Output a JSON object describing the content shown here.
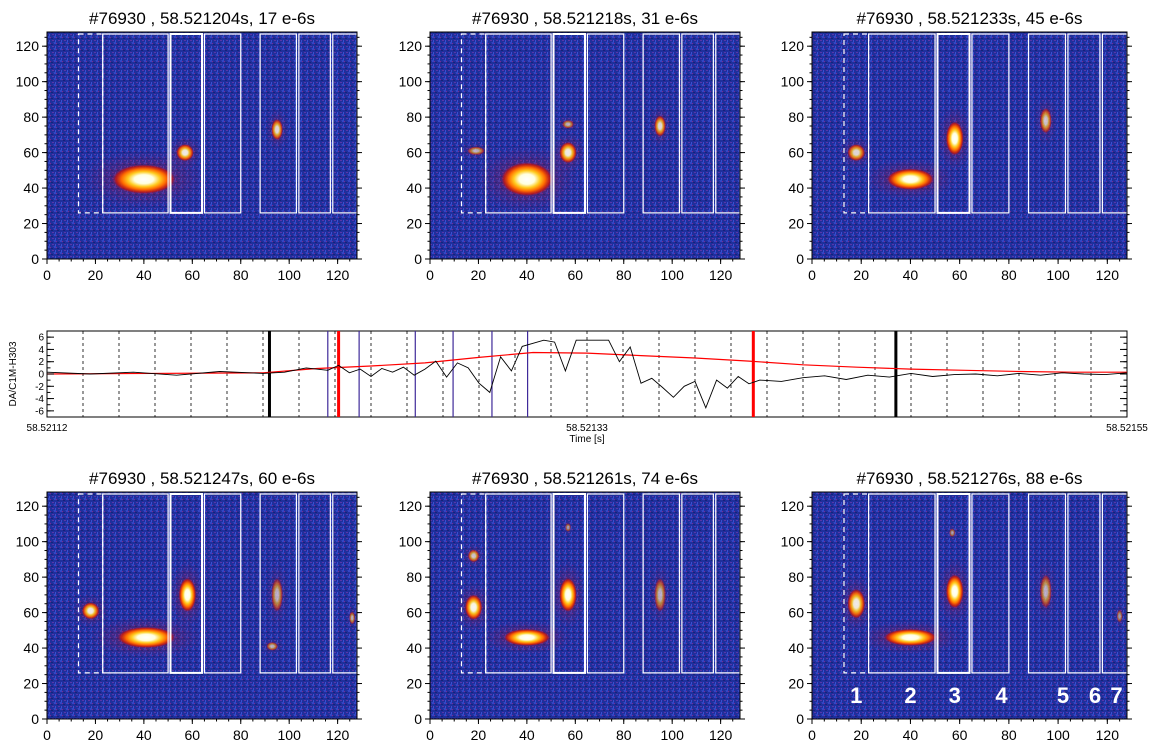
{
  "colors": {
    "background": "#1e2f9a",
    "noise": "#2b3fb8",
    "hot_low": "#c8140c",
    "hot_mid": "#ff8a00",
    "hot_high": "#ffffff",
    "box": "#ffffff",
    "trace": "#000000",
    "envelope": "#ff0000",
    "marker_black": "#000000",
    "marker_red": "#ff0000",
    "marker_purple": "#3f2a9a"
  },
  "chart_data": [
    {
      "type": "heatmap",
      "title": "#76930 , 58.521204s,   17 e-6s",
      "xlim": [
        0,
        128
      ],
      "ylim": [
        0,
        128
      ],
      "xticks": [
        "0",
        "20",
        "40",
        "60",
        "80",
        "100",
        "120"
      ],
      "yticks": [
        "0",
        "20",
        "40",
        "60",
        "80",
        "100",
        "120"
      ],
      "spots": [
        {
          "x": 40,
          "y": 45,
          "rx": 11,
          "ry": 7,
          "level": 1.0
        },
        {
          "x": 57,
          "y": 60,
          "rx": 3,
          "ry": 4,
          "level": 0.8
        },
        {
          "x": 95,
          "y": 73,
          "rx": 2,
          "ry": 5,
          "level": 0.7
        }
      ]
    },
    {
      "type": "heatmap",
      "title": "#76930 , 58.521218s,   31 e-6s",
      "xlim": [
        0,
        128
      ],
      "ylim": [
        0,
        128
      ],
      "xticks": [
        "0",
        "20",
        "40",
        "60",
        "80",
        "100",
        "120"
      ],
      "yticks": [
        "0",
        "20",
        "40",
        "60",
        "80",
        "100",
        "120"
      ],
      "spots": [
        {
          "x": 40,
          "y": 45,
          "rx": 9,
          "ry": 8,
          "level": 1.0
        },
        {
          "x": 57,
          "y": 60,
          "rx": 3,
          "ry": 5,
          "level": 0.8
        },
        {
          "x": 57,
          "y": 76,
          "rx": 2,
          "ry": 2,
          "level": 0.5
        },
        {
          "x": 19,
          "y": 61,
          "rx": 3,
          "ry": 2,
          "level": 0.5
        },
        {
          "x": 95,
          "y": 75,
          "rx": 2,
          "ry": 5,
          "level": 0.7
        }
      ]
    },
    {
      "type": "heatmap",
      "title": "#76930 , 58.521233s,   45 e-6s",
      "xlim": [
        0,
        128
      ],
      "ylim": [
        0,
        128
      ],
      "xticks": [
        "0",
        "20",
        "40",
        "60",
        "80",
        "100",
        "120"
      ],
      "yticks": [
        "0",
        "20",
        "40",
        "60",
        "80",
        "100",
        "120"
      ],
      "spots": [
        {
          "x": 40,
          "y": 45,
          "rx": 8,
          "ry": 5,
          "level": 1.0
        },
        {
          "x": 58,
          "y": 68,
          "rx": 3,
          "ry": 8,
          "level": 0.9
        },
        {
          "x": 18,
          "y": 60,
          "rx": 3,
          "ry": 4,
          "level": 0.7
        },
        {
          "x": 95,
          "y": 78,
          "rx": 2,
          "ry": 6,
          "level": 0.6
        }
      ]
    },
    {
      "type": "heatmap",
      "title": "#76930 , 58.521247s,   60 e-6s",
      "xlim": [
        0,
        128
      ],
      "ylim": [
        0,
        128
      ],
      "xticks": [
        "0",
        "20",
        "40",
        "60",
        "80",
        "100",
        "120"
      ],
      "yticks": [
        "0",
        "20",
        "40",
        "60",
        "80",
        "100",
        "120"
      ],
      "spots": [
        {
          "x": 41,
          "y": 46,
          "rx": 10,
          "ry": 5,
          "level": 1.0
        },
        {
          "x": 58,
          "y": 70,
          "rx": 3,
          "ry": 8,
          "level": 0.95
        },
        {
          "x": 18,
          "y": 61,
          "rx": 3,
          "ry": 4,
          "level": 0.8
        },
        {
          "x": 95,
          "y": 70,
          "rx": 2,
          "ry": 8,
          "level": 0.5
        },
        {
          "x": 93,
          "y": 41,
          "rx": 2,
          "ry": 2,
          "level": 0.5
        },
        {
          "x": 126,
          "y": 57,
          "rx": 1,
          "ry": 3,
          "level": 0.5
        }
      ]
    },
    {
      "type": "heatmap",
      "title": "#76930 , 58.521261s,   74 e-6s",
      "xlim": [
        0,
        128
      ],
      "ylim": [
        0,
        128
      ],
      "xticks": [
        "0",
        "20",
        "40",
        "60",
        "80",
        "100",
        "120"
      ],
      "yticks": [
        "0",
        "20",
        "40",
        "60",
        "80",
        "100",
        "120"
      ],
      "spots": [
        {
          "x": 40,
          "y": 46,
          "rx": 8,
          "ry": 4,
          "level": 1.0
        },
        {
          "x": 57,
          "y": 70,
          "rx": 3,
          "ry": 8,
          "level": 0.95
        },
        {
          "x": 18,
          "y": 63,
          "rx": 3,
          "ry": 6,
          "level": 0.85
        },
        {
          "x": 18,
          "y": 92,
          "rx": 2,
          "ry": 3,
          "level": 0.6
        },
        {
          "x": 95,
          "y": 70,
          "rx": 2,
          "ry": 8,
          "level": 0.5
        },
        {
          "x": 57,
          "y": 108,
          "rx": 1,
          "ry": 2,
          "level": 0.4
        }
      ]
    },
    {
      "type": "heatmap",
      "title": "#76930 , 58.521276s,   88 e-6s",
      "xlim": [
        0,
        128
      ],
      "ylim": [
        0,
        128
      ],
      "xticks": [
        "0",
        "20",
        "40",
        "60",
        "80",
        "100",
        "120"
      ],
      "yticks": [
        "0",
        "20",
        "40",
        "60",
        "80",
        "100",
        "120"
      ],
      "spots": [
        {
          "x": 40,
          "y": 46,
          "rx": 9,
          "ry": 4,
          "level": 1.0
        },
        {
          "x": 58,
          "y": 72,
          "rx": 3,
          "ry": 8,
          "level": 0.9
        },
        {
          "x": 18,
          "y": 65,
          "rx": 3,
          "ry": 7,
          "level": 0.8
        },
        {
          "x": 95,
          "y": 72,
          "rx": 2,
          "ry": 8,
          "level": 0.5
        },
        {
          "x": 57,
          "y": 105,
          "rx": 1,
          "ry": 2,
          "level": 0.4
        },
        {
          "x": 125,
          "y": 58,
          "rx": 1,
          "ry": 3,
          "level": 0.4
        }
      ],
      "channel_labels": [
        {
          "text": "1",
          "x": 18
        },
        {
          "text": "2",
          "x": 40
        },
        {
          "text": "3",
          "x": 58
        },
        {
          "text": "4",
          "x": 77
        },
        {
          "text": "5",
          "x": 102
        },
        {
          "text": "6",
          "x": 115
        },
        {
          "text": "7",
          "x": 127
        }
      ]
    },
    {
      "type": "line",
      "ylabel": "DA/C1M-H303",
      "xlabel": "Time [s]",
      "xlim_label_left": "58.52112",
      "xlim_label_mid": "58.52133",
      "xlim_label_right": "58.52155",
      "yticks": [
        "6",
        "4",
        "2",
        "0",
        "-2",
        "-4",
        "-6"
      ],
      "xlim": [
        0,
        100
      ],
      "ylim": [
        -7,
        7
      ],
      "dashed_lines_x": [
        8.3,
        16.6,
        24.9,
        33.2,
        58,
        66.3,
        74.6,
        82.9,
        91.2,
        99.5,
        107.8,
        116.1,
        124.4,
        132.7,
        141,
        149.3,
        157.6,
        165.9
      ],
      "markers": [
        {
          "x": 20.6,
          "color": "black"
        },
        {
          "x": 26.0,
          "color": "purple"
        },
        {
          "x": 27.0,
          "color": "red"
        },
        {
          "x": 28.9,
          "color": "purple"
        },
        {
          "x": 34.1,
          "color": "purple"
        },
        {
          "x": 37.6,
          "color": "purple"
        },
        {
          "x": 41.2,
          "color": "purple"
        },
        {
          "x": 44.5,
          "color": "purple"
        },
        {
          "x": 65.4,
          "color": "red"
        },
        {
          "x": 78.6,
          "color": "black"
        }
      ],
      "series": [
        {
          "x": [
            0,
            20,
            25,
            30,
            35,
            40,
            45,
            50,
            55,
            60,
            65,
            70,
            75,
            80,
            85,
            90,
            95,
            100
          ],
          "y": [
            0,
            0.2,
            0.9,
            1.3,
            1.8,
            2.7,
            3.5,
            3.4,
            3.0,
            2.6,
            2.1,
            1.5,
            1.1,
            0.8,
            0.6,
            0.4,
            0.3,
            0.3
          ],
          "role": "envelope"
        },
        {
          "x": [
            0,
            4,
            8,
            12,
            16,
            20,
            22,
            24,
            26,
            27,
            28,
            29,
            30,
            31,
            32,
            33,
            34,
            35,
            36,
            37,
            38,
            39,
            40,
            41,
            42,
            43,
            44,
            45,
            46,
            47,
            48,
            49,
            50,
            51,
            52,
            53,
            54,
            55,
            56,
            57,
            58,
            59,
            60,
            61,
            62,
            63,
            64,
            65,
            66,
            68,
            70,
            72,
            74,
            76,
            78,
            80,
            82,
            84,
            86,
            88,
            90,
            92,
            94,
            96,
            98,
            100
          ],
          "y": [
            0.3,
            0.0,
            0.3,
            -0.2,
            0.4,
            0.1,
            0.3,
            1.0,
            0.6,
            1.4,
            0.2,
            0.8,
            -0.4,
            0.9,
            0.3,
            1.1,
            -0.2,
            0.8,
            2.1,
            -0.5,
            1.8,
            1.0,
            -1.5,
            -3.0,
            2.8,
            0.5,
            4.5,
            5.0,
            5.5,
            5.2,
            0.5,
            5.5,
            5.5,
            5.5,
            5.5,
            2.0,
            4.4,
            -1.5,
            -0.7,
            -2.2,
            -3.8,
            -2.0,
            -1.2,
            -5.5,
            -1.0,
            -2.3,
            -0.4,
            -1.6,
            -1.0,
            -1.2,
            -0.6,
            -0.3,
            -0.9,
            -0.2,
            -0.5,
            0.1,
            -0.4,
            -0.1,
            0.0,
            -0.3,
            0.1,
            -0.2,
            0.2,
            0.0,
            -0.1,
            0.2
          ],
          "role": "trace"
        }
      ]
    }
  ]
}
